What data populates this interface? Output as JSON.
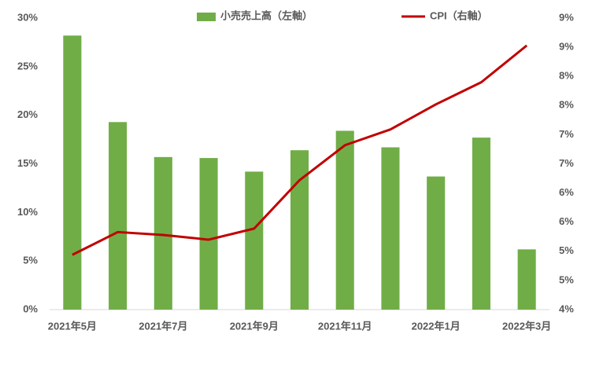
{
  "chart_data": {
    "type": "bar-line",
    "categories": [
      "2021年5月",
      null,
      "2021年7月",
      null,
      "2021年9月",
      null,
      "2021年11月",
      null,
      "2022年1月",
      null,
      "2022年3月"
    ],
    "series": [
      {
        "name": "小売売上高（左軸）",
        "type": "bar",
        "color": "#70ad47",
        "values": [
          28.2,
          19.3,
          15.7,
          15.6,
          14.2,
          16.4,
          18.4,
          16.7,
          13.7,
          17.7,
          6.2
        ]
      },
      {
        "name": "CPI（右軸）",
        "type": "line",
        "axis": "y2",
        "color": "#c00000",
        "values": [
          4.94,
          5.33,
          5.28,
          5.2,
          5.39,
          6.22,
          6.82,
          7.09,
          7.52,
          7.9,
          8.53
        ]
      }
    ],
    "ylim": [
      0,
      30
    ],
    "yticks": [
      {
        "value": 0,
        "label": "0%"
      },
      {
        "value": 5,
        "label": "5%"
      },
      {
        "value": 10,
        "label": "10%"
      },
      {
        "value": 15,
        "label": "15%"
      },
      {
        "value": 20,
        "label": "20%"
      },
      {
        "value": 25,
        "label": "25%"
      },
      {
        "value": 30,
        "label": "30%"
      }
    ],
    "y2lim": [
      4,
      9
    ],
    "y2ticks": [
      {
        "value": 4,
        "label": "4%"
      },
      {
        "value": 4.5,
        "label": "5%"
      },
      {
        "value": 5,
        "label": "5%"
      },
      {
        "value": 5.5,
        "label": "6%"
      },
      {
        "value": 6,
        "label": "6%"
      },
      {
        "value": 6.5,
        "label": "7%"
      },
      {
        "value": 7,
        "label": "7%"
      },
      {
        "value": 7.5,
        "label": "8%"
      },
      {
        "value": 8,
        "label": "8%"
      },
      {
        "value": 8.5,
        "label": "9%"
      },
      {
        "value": 9,
        "label": "9%"
      }
    ],
    "legend": "top"
  }
}
